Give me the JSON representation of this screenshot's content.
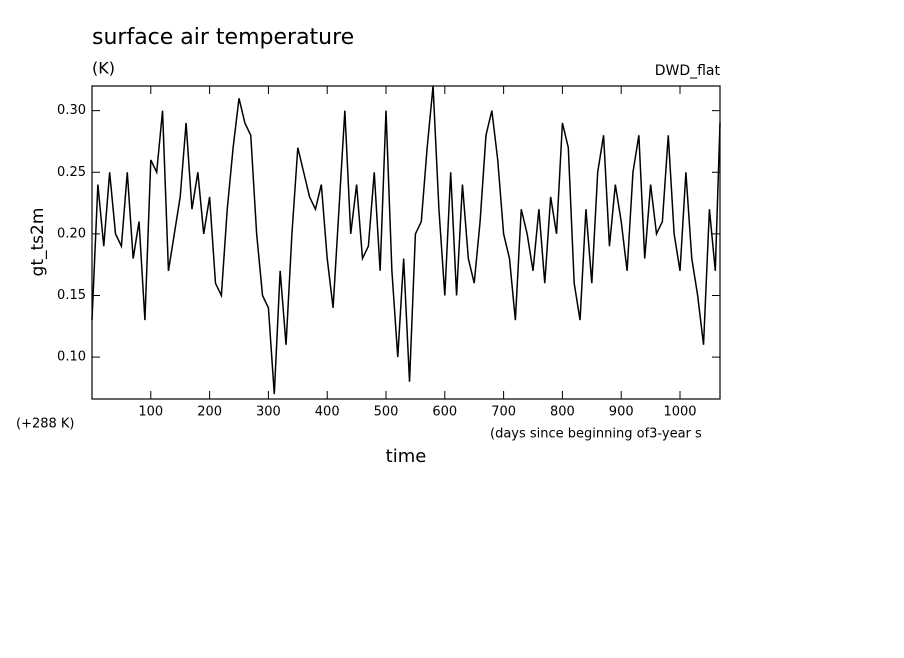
{
  "chart_data": {
    "type": "line",
    "title": "surface air temperature",
    "units": "(K)",
    "run_label": "DWD_flat",
    "y_label": "gt_ts2m",
    "y_offset_label": "(+288 K)",
    "x_note": "(days since beginning of3-year s",
    "x_label": "time",
    "x": [
      0,
      10,
      20,
      30,
      40,
      50,
      60,
      70,
      80,
      90,
      100,
      110,
      120,
      130,
      140,
      150,
      160,
      170,
      180,
      190,
      200,
      210,
      220,
      230,
      240,
      250,
      260,
      270,
      280,
      290,
      300,
      310,
      320,
      330,
      340,
      350,
      360,
      370,
      380,
      390,
      400,
      410,
      420,
      430,
      440,
      450,
      460,
      470,
      480,
      490,
      500,
      510,
      520,
      530,
      540,
      550,
      560,
      570,
      580,
      590,
      600,
      610,
      620,
      630,
      640,
      650,
      660,
      670,
      680,
      690,
      700,
      710,
      720,
      730,
      740,
      750,
      760,
      770,
      780,
      790,
      800,
      810,
      820,
      830,
      840,
      850,
      860,
      870,
      880,
      890,
      900,
      910,
      920,
      930,
      940,
      950,
      960,
      970,
      980,
      990,
      1000,
      1010,
      1020,
      1030,
      1040,
      1050,
      1060,
      1068
    ],
    "series": [
      {
        "name": "gt_ts2m",
        "color": "#000000",
        "values": [
          0.13,
          0.24,
          0.19,
          0.25,
          0.2,
          0.19,
          0.25,
          0.18,
          0.21,
          0.13,
          0.26,
          0.25,
          0.3,
          0.17,
          0.2,
          0.23,
          0.29,
          0.22,
          0.25,
          0.2,
          0.23,
          0.16,
          0.15,
          0.22,
          0.27,
          0.31,
          0.29,
          0.28,
          0.2,
          0.15,
          0.14,
          0.07,
          0.17,
          0.11,
          0.2,
          0.27,
          0.25,
          0.23,
          0.22,
          0.24,
          0.18,
          0.14,
          0.22,
          0.3,
          0.2,
          0.24,
          0.18,
          0.19,
          0.25,
          0.17,
          0.3,
          0.17,
          0.1,
          0.18,
          0.08,
          0.2,
          0.21,
          0.27,
          0.32,
          0.22,
          0.15,
          0.25,
          0.15,
          0.24,
          0.18,
          0.16,
          0.21,
          0.28,
          0.3,
          0.26,
          0.2,
          0.18,
          0.13,
          0.22,
          0.2,
          0.17,
          0.22,
          0.16,
          0.23,
          0.2,
          0.29,
          0.27,
          0.16,
          0.13,
          0.22,
          0.16,
          0.25,
          0.28,
          0.19,
          0.24,
          0.21,
          0.17,
          0.25,
          0.28,
          0.18,
          0.24,
          0.2,
          0.21,
          0.28,
          0.2,
          0.17,
          0.25,
          0.18,
          0.15,
          0.11,
          0.22,
          0.17,
          0.29
        ]
      }
    ],
    "xlim": [
      0,
      1068
    ],
    "ylim": [
      0.066,
      0.32
    ],
    "xticks": [
      100,
      200,
      300,
      400,
      500,
      600,
      700,
      800,
      900,
      1000
    ],
    "yticks": [
      {
        "value": 0.1,
        "label": "0.10"
      },
      0.15,
      {
        "value": 0.2,
        "label": "0.20"
      },
      0.25,
      {
        "value": 0.3,
        "label": "0.30"
      }
    ]
  }
}
